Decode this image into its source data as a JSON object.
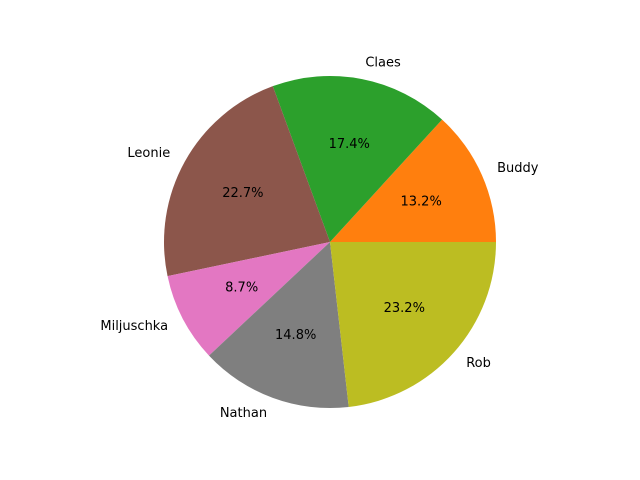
{
  "chart_data": {
    "type": "pie",
    "labels": [
      "Buddy",
      "Claes",
      "Leonie",
      "Miljuschka",
      "Nathan",
      "Rob"
    ],
    "values": [
      13.2,
      17.4,
      22.7,
      8.7,
      14.8,
      23.2
    ],
    "value_labels": [
      "13.2%",
      "17.4%",
      "22.7%",
      "8.7%",
      "14.8%",
      "23.2%"
    ],
    "colors": [
      "#ff7f0e",
      "#2ca02c",
      "#8c564b",
      "#e377c2",
      "#7f7f7f",
      "#bcbd22"
    ],
    "start_angle_deg": 0,
    "direction": "counterclockwise",
    "legend": "none"
  }
}
